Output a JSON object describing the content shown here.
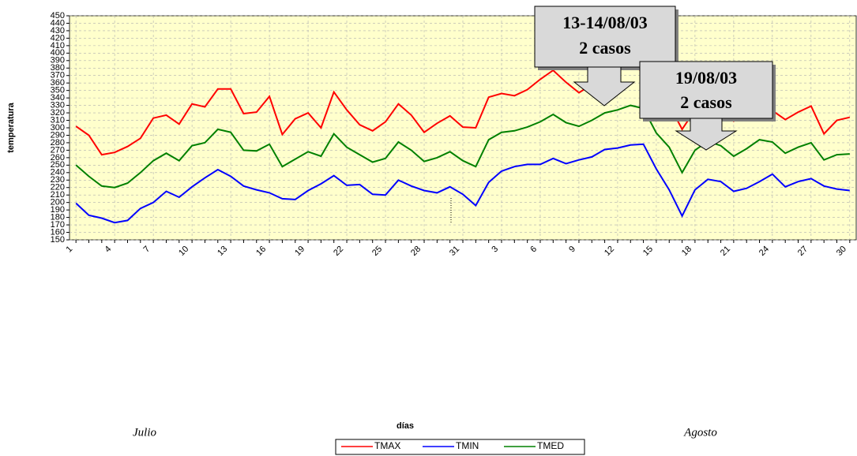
{
  "chart_data": {
    "type": "line",
    "y_label": "temperatura",
    "x_label": "días",
    "month_labels": [
      "Julio",
      "Agosto"
    ],
    "annotations": [
      [
        "13-14/08/03",
        "2 casos"
      ],
      [
        "19/08/03",
        "2 casos"
      ]
    ],
    "categories": [
      "1",
      null,
      null,
      "4",
      null,
      null,
      "7",
      null,
      null,
      "10",
      null,
      null,
      "13",
      null,
      null,
      "16",
      null,
      null,
      "19",
      null,
      null,
      "22",
      null,
      null,
      "25",
      null,
      null,
      "28",
      null,
      null,
      "31",
      null,
      null,
      "3",
      null,
      null,
      "6",
      null,
      null,
      "9",
      null,
      null,
      "12",
      null,
      null,
      "15",
      null,
      null,
      "18",
      null,
      null,
      "21",
      null,
      null,
      "24",
      null,
      null,
      "27",
      null,
      null,
      "30"
    ],
    "series": [
      {
        "name": "TMAX",
        "color": "#ff0000",
        "values": [
          302,
          290,
          264,
          267,
          275,
          286,
          313,
          317,
          305,
          332,
          328,
          352,
          352,
          319,
          321,
          342,
          291,
          312,
          320,
          300,
          348,
          324,
          304,
          296,
          308,
          332,
          317,
          294,
          306,
          316,
          301,
          300,
          341,
          346,
          343,
          351,
          365,
          377,
          361,
          347,
          358,
          369,
          376,
          384,
          375,
          341,
          331,
          298,
          324,
          334,
          324,
          309,
          325,
          338,
          323,
          311,
          321,
          329,
          292,
          310,
          314
        ]
      },
      {
        "name": "TMIN",
        "color": "#0000ff",
        "values": [
          199,
          183,
          179,
          173,
          176,
          192,
          200,
          215,
          207,
          221,
          233,
          244,
          235,
          222,
          217,
          213,
          205,
          204,
          216,
          225,
          236,
          223,
          224,
          211,
          210,
          230,
          222,
          216,
          213,
          221,
          211,
          196,
          227,
          242,
          248,
          251,
          251,
          259,
          252,
          257,
          261,
          271,
          273,
          277,
          278,
          245,
          217,
          182,
          217,
          231,
          228,
          215,
          219,
          228,
          238,
          221,
          228,
          232,
          222,
          218,
          216
        ]
      },
      {
        "name": "TMED",
        "color": "#008000",
        "values": [
          250,
          235,
          222,
          220,
          226,
          240,
          256,
          266,
          256,
          276,
          280,
          298,
          294,
          270,
          269,
          278,
          248,
          258,
          268,
          262,
          292,
          274,
          264,
          254,
          259,
          281,
          270,
          255,
          260,
          268,
          256,
          248,
          284,
          294,
          296,
          301,
          308,
          318,
          307,
          302,
          310,
          320,
          324,
          330,
          326,
          293,
          274,
          240,
          270,
          282,
          276,
          262,
          272,
          284,
          281,
          266,
          274,
          280,
          257,
          264,
          265
        ]
      }
    ],
    "ylim": [
      150,
      450
    ],
    "yticks": [
      150,
      160,
      170,
      180,
      190,
      200,
      210,
      220,
      230,
      240,
      250,
      260,
      270,
      280,
      290,
      300,
      310,
      320,
      330,
      340,
      350,
      360,
      370,
      380,
      390,
      400,
      410,
      420,
      430,
      440,
      450
    ],
    "grid": true,
    "legend": "bottom"
  }
}
